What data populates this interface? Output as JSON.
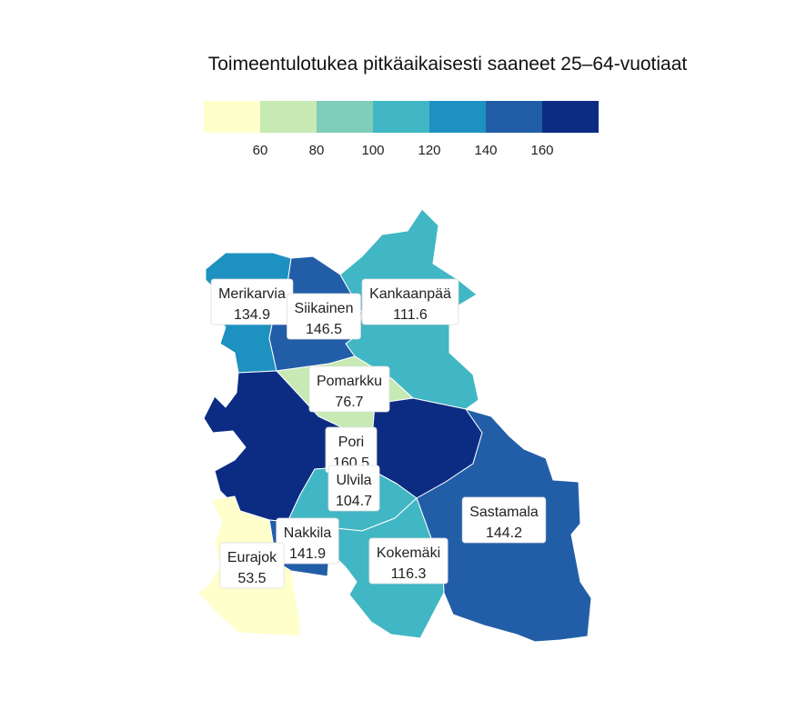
{
  "title": "Toimeentulotukea pitkäaikaisesti saaneet 25–64-vuotiaat",
  "legend": {
    "colors": [
      "#ffffcc",
      "#c7e9b4",
      "#7fcdbb",
      "#41b6c4",
      "#1d91c0",
      "#225ea8",
      "#0c2c84"
    ],
    "breaks": [
      60,
      80,
      100,
      120,
      140,
      160
    ],
    "tick_labels": [
      "60",
      "80",
      "100",
      "120",
      "140",
      "160"
    ]
  },
  "regions": [
    {
      "key": "merikarvia",
      "name": "Merikarvia",
      "value": 134.9,
      "value_text": "134.9",
      "color": "#1d91c0"
    },
    {
      "key": "siikainen",
      "name": "Siikainen",
      "value": 146.5,
      "value_text": "146.5",
      "color": "#225ea8"
    },
    {
      "key": "kankaanpaa",
      "name": "Kankaanpää",
      "value": 111.6,
      "value_text": "111.6",
      "color": "#41b6c4"
    },
    {
      "key": "pomarkku",
      "name": "Pomarkku",
      "value": 76.7,
      "value_text": "76.7",
      "color": "#c7e9b4"
    },
    {
      "key": "pori",
      "name": "Pori",
      "value": 160.5,
      "value_text": "160.5",
      "color": "#0c2c84"
    },
    {
      "key": "ulvila",
      "name": "Ulvila",
      "value": 104.7,
      "value_text": "104.7",
      "color": "#41b6c4"
    },
    {
      "key": "sastamala",
      "name": "Sastamala",
      "value": 144.2,
      "value_text": "144.2",
      "color": "#225ea8"
    },
    {
      "key": "nakkila",
      "name": "Nakkila",
      "value": 141.9,
      "value_text": "141.9",
      "color": "#225ea8"
    },
    {
      "key": "kokemaki",
      "name": "Kokemäki",
      "value": 116.3,
      "value_text": "116.3",
      "color": "#41b6c4"
    },
    {
      "key": "eurajoki",
      "name": "Eurajok",
      "value": 53.5,
      "value_text": "53.5",
      "color": "#ffffcc"
    }
  ]
}
